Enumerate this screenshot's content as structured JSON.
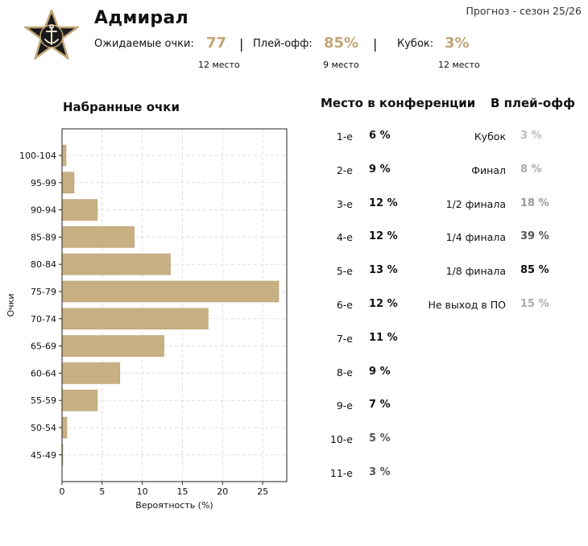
{
  "header": {
    "team_name": "Адмирал",
    "forecast_label": "Прогноз - сезон 25/26",
    "expected_points_label": "Ожидаемые очки:",
    "expected_points_value": "77",
    "expected_points_rank": "12 место",
    "playoff_label": "Плей-офф:",
    "playoff_value": "85%",
    "playoff_rank": "9 место",
    "cup_label": "Кубок:",
    "cup_value": "3%",
    "cup_rank": "12 место",
    "separator": "|"
  },
  "chart_data": {
    "type": "bar",
    "orientation": "horizontal",
    "title": "Набранные очки",
    "xlabel": "Вероятность (%)",
    "ylabel": "Очки",
    "xlim": [
      0,
      28
    ],
    "xticks": [
      0,
      5,
      10,
      15,
      20,
      25
    ],
    "grid": true,
    "bar_color": "#c8b083",
    "categories": [
      "100-104",
      "95-99",
      "90-94",
      "85-89",
      "80-84",
      "75-79",
      "70-74",
      "65-69",
      "60-64",
      "55-59",
      "50-54",
      "45-49"
    ],
    "values": [
      0.5,
      1.5,
      4.4,
      9.0,
      13.5,
      27.0,
      18.2,
      12.7,
      7.2,
      4.4,
      0.6,
      0.1
    ]
  },
  "conference": {
    "title": "Место в конференции",
    "rows": [
      {
        "place": "1-е",
        "value": "6 %",
        "color": "#111111"
      },
      {
        "place": "2-е",
        "value": "9 %",
        "color": "#111111"
      },
      {
        "place": "3-е",
        "value": "12 %",
        "color": "#111111"
      },
      {
        "place": "4-е",
        "value": "12 %",
        "color": "#111111"
      },
      {
        "place": "5-е",
        "value": "13 %",
        "color": "#111111"
      },
      {
        "place": "6-е",
        "value": "12 %",
        "color": "#111111"
      },
      {
        "place": "7-е",
        "value": "11 %",
        "color": "#111111"
      },
      {
        "place": "8-е",
        "value": "9 %",
        "color": "#111111"
      },
      {
        "place": "9-е",
        "value": "7 %",
        "color": "#111111"
      },
      {
        "place": "10-е",
        "value": "5 %",
        "color": "#555555"
      },
      {
        "place": "11-е",
        "value": "3 %",
        "color": "#555555"
      }
    ]
  },
  "playoff": {
    "title": "В плей-офф",
    "rows": [
      {
        "stage": "Кубок",
        "value": "3 %",
        "color": "#bbbbbb"
      },
      {
        "stage": "Финал",
        "value": "8 %",
        "color": "#aaaaaa"
      },
      {
        "stage": "1/2 финала",
        "value": "18 %",
        "color": "#999999"
      },
      {
        "stage": "1/4 финала",
        "value": "39 %",
        "color": "#555555"
      },
      {
        "stage": "1/8 финала",
        "value": "85 %",
        "color": "#111111"
      },
      {
        "stage": "Не выход в ПО",
        "value": "15 %",
        "color": "#aaaaaa"
      }
    ]
  }
}
